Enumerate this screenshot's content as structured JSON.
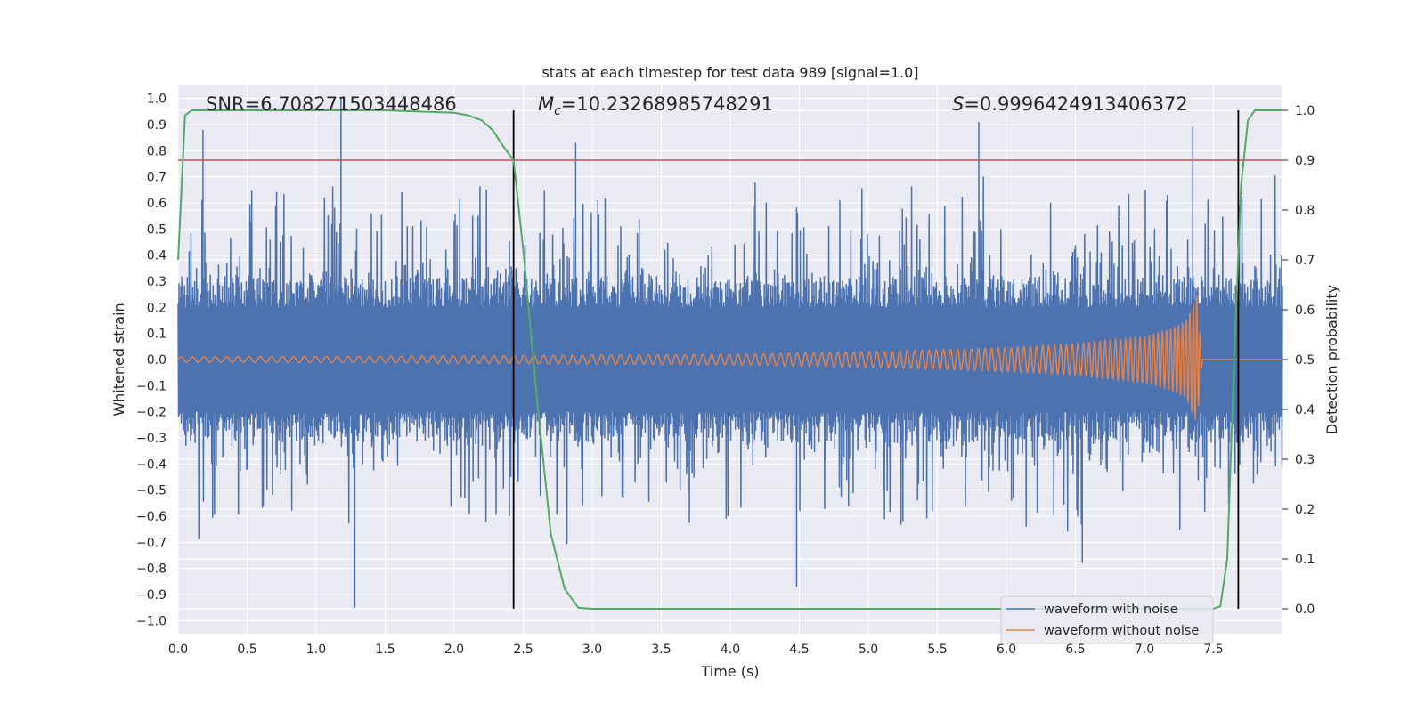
{
  "chart_data": {
    "type": "line",
    "title": "stats at each timestep for test data 989 [signal=1.0]",
    "xlabel": "Time (s)",
    "ylabel": "Whitened strain",
    "y2label": "Detection probability",
    "xlim": [
      0.0,
      8.0
    ],
    "ylim": [
      -1.05,
      1.05
    ],
    "y2lim": [
      -0.05,
      1.05
    ],
    "x_ticks": [
      "0.0",
      "0.5",
      "1.0",
      "1.5",
      "2.0",
      "2.5",
      "3.0",
      "3.5",
      "4.0",
      "4.5",
      "5.0",
      "5.5",
      "6.0",
      "6.5",
      "7.0",
      "7.5"
    ],
    "y_ticks": [
      "1.0",
      "0.9",
      "0.8",
      "0.7",
      "0.6",
      "0.5",
      "0.4",
      "0.3",
      "0.2",
      "0.1",
      "0.0",
      "−0.1",
      "−0.2",
      "−0.3",
      "−0.4",
      "−0.5",
      "−0.6",
      "−0.7",
      "−0.8",
      "−0.9",
      "−1.0"
    ],
    "y2_ticks": [
      "1.0",
      "0.9",
      "0.8",
      "0.7",
      "0.6",
      "0.5",
      "0.4",
      "0.3",
      "0.2",
      "0.1",
      "0.0"
    ],
    "annotations": {
      "snr": "SNR=6.708271503448486",
      "mc_value": "=10.23268985748291",
      "s_value": "=0.9996424913406372"
    },
    "threshold": 0.9,
    "vlines": [
      2.43,
      7.68
    ],
    "grid": true,
    "legend_position": "lower-right",
    "legend": [
      "waveform with noise",
      "waveform without noise"
    ],
    "colors": {
      "noise": "#4c72b0",
      "clean": "#dd8452",
      "probability": "#55a868",
      "threshold": "#c44e52",
      "vline": "#000000",
      "background": "#eaeaf2"
    },
    "series": [
      {
        "name": "waveform with noise",
        "note_values": "dense noise, peak amplitude approx 0.95",
        "peaks_x": [
          0.18,
          1.18,
          1.28,
          2.4,
          2.88,
          4.48,
          5.8,
          6.55,
          7.35
        ],
        "peaks_y": [
          0.88,
          1.0,
          -0.95,
          -0.6,
          0.83,
          -0.87,
          0.91,
          -0.78,
          0.89
        ]
      },
      {
        "name": "waveform without noise",
        "x": [
          0.0,
          1.0,
          2.0,
          3.0,
          4.0,
          5.0,
          6.0,
          6.5,
          7.0,
          7.2,
          7.3,
          7.38,
          7.42,
          8.0
        ],
        "amplitude": [
          0.01,
          0.012,
          0.014,
          0.017,
          0.02,
          0.03,
          0.045,
          0.06,
          0.09,
          0.12,
          0.15,
          0.25,
          0.0,
          0.0
        ]
      },
      {
        "name": "detection probability",
        "x": [
          0.0,
          0.05,
          0.1,
          0.2,
          1.0,
          1.5,
          2.0,
          2.1,
          2.2,
          2.28,
          2.35,
          2.43,
          2.5,
          2.6,
          2.7,
          2.8,
          2.9,
          3.0,
          7.5,
          7.55,
          7.6,
          7.65,
          7.7,
          7.75,
          7.8,
          7.85,
          7.9,
          8.0
        ],
        "y": [
          0.7,
          0.99,
          1.0,
          1.0,
          1.0,
          1.0,
          0.995,
          0.99,
          0.98,
          0.96,
          0.93,
          0.9,
          0.72,
          0.42,
          0.15,
          0.04,
          0.002,
          0.0,
          0.0,
          0.005,
          0.1,
          0.5,
          0.85,
          0.98,
          1.0,
          1.0,
          1.0,
          1.0
        ]
      }
    ]
  }
}
